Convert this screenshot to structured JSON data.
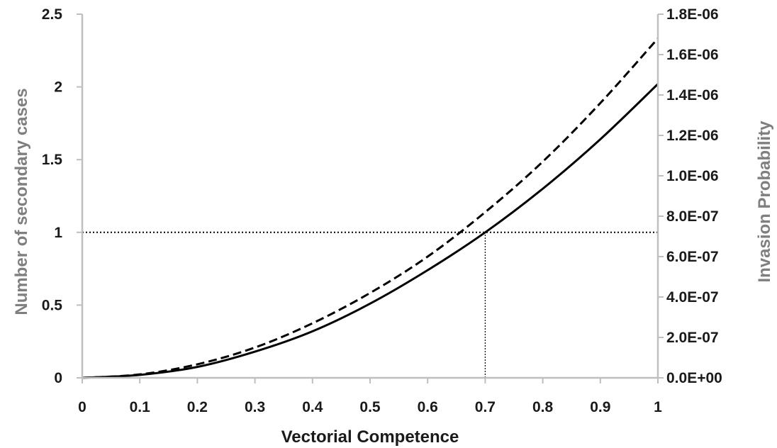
{
  "chart_data": {
    "type": "line",
    "xlabel": "Vectorial Competence",
    "ylabel": "Number of secondary cases",
    "y2label": "Invasion Probability",
    "xlim": [
      0,
      1
    ],
    "ylim": [
      0,
      2.5
    ],
    "y2lim": [
      0,
      1.8e-06
    ],
    "x_ticks": [
      "0",
      "0.1",
      "0.2",
      "0.3",
      "0.4",
      "0.5",
      "0.6",
      "0.7",
      "0.8",
      "0.9",
      "1"
    ],
    "y_ticks": [
      "0",
      "0.5",
      "1",
      "1.5",
      "2",
      "2.5"
    ],
    "y2_ticks": [
      "0.0E+00",
      "2.0E-07",
      "4.0E-07",
      "6.0E-07",
      "8.0E-07",
      "1.0E-06",
      "1.2E-06",
      "1.4E-06",
      "1.6E-06",
      "1.8E-06"
    ],
    "grid": false,
    "colors": {
      "axis_line": "#bfbfbf",
      "axis_title": "#7f7f7f",
      "tick_label": "#1a1a1a",
      "series": "#000000"
    },
    "series": [
      {
        "axis": "left",
        "style": "solid",
        "x": [
          0,
          0.1,
          0.2,
          0.3,
          0.4,
          0.5,
          0.6,
          0.7,
          0.8,
          0.9,
          1.0
        ],
        "y": [
          0,
          0.02,
          0.075,
          0.18,
          0.32,
          0.51,
          0.74,
          1.0,
          1.3,
          1.64,
          2.02
        ]
      },
      {
        "axis": "right",
        "style": "dashed",
        "x": [
          0,
          0.1,
          0.2,
          0.3,
          0.4,
          0.5,
          0.6,
          0.7,
          0.8,
          0.9,
          1.0
        ],
        "y": [
          0,
          1.7e-08,
          6.7e-08,
          1.5e-07,
          2.7e-07,
          4.2e-07,
          6e-07,
          8.2e-07,
          1.07e-06,
          1.36e-06,
          1.68e-06
        ]
      }
    ],
    "reference_lines": [
      {
        "orientation": "horizontal",
        "axis": "left",
        "value": 1,
        "style": "dotted"
      },
      {
        "orientation": "vertical",
        "value": 0.7,
        "from": 0,
        "to": 1,
        "style": "dotted"
      }
    ]
  }
}
